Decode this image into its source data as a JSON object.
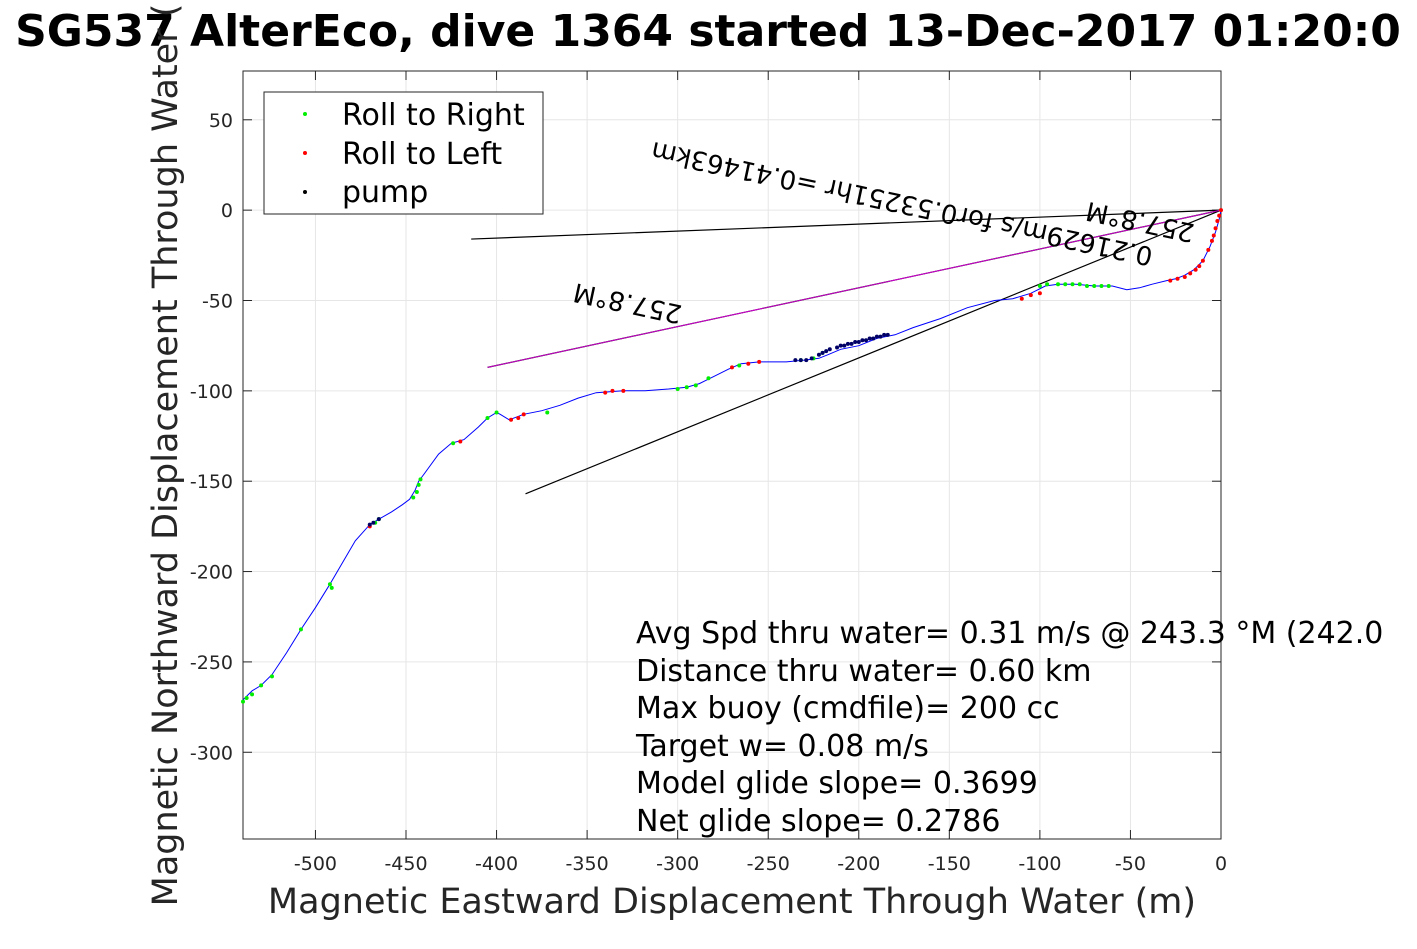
{
  "chart_data": {
    "type": "line",
    "title": "SG537 AlterEco, dive 1364 started 13-Dec-2017 01:20:0",
    "xlabel": "Magnetic Eastward Displacement Through Water (m)",
    "ylabel": "Magnetic Northward Displacement Through Water (",
    "xlim": [
      -540,
      0
    ],
    "ylim": [
      -348,
      77
    ],
    "x_ticks": [
      -500,
      -450,
      -400,
      -350,
      -300,
      -250,
      -200,
      -150,
      -100,
      -50,
      0
    ],
    "y_ticks": [
      50,
      0,
      -50,
      -100,
      -150,
      -200,
      -250,
      -300
    ],
    "grid": true,
    "legend": {
      "placement": "top-left",
      "entries": [
        {
          "label": "Roll to Right",
          "color": "#00ee00"
        },
        {
          "label": "Roll to Left",
          "color": "#ff0000"
        },
        {
          "label": "pump",
          "color": "#000000"
        }
      ]
    },
    "track": {
      "color": "#0000ff",
      "points": [
        [
          0,
          0
        ],
        [
          -1,
          -5
        ],
        [
          -3,
          -12
        ],
        [
          -6,
          -20
        ],
        [
          -10,
          -28
        ],
        [
          -15,
          -33
        ],
        [
          -20,
          -36
        ],
        [
          -25,
          -38
        ],
        [
          -30,
          -39
        ],
        [
          -38,
          -41
        ],
        [
          -45,
          -43
        ],
        [
          -52,
          -44
        ],
        [
          -60,
          -42
        ],
        [
          -70,
          -42
        ],
        [
          -80,
          -41
        ],
        [
          -90,
          -41
        ],
        [
          -97,
          -42
        ],
        [
          -105,
          -46
        ],
        [
          -115,
          -49
        ],
        [
          -125,
          -50
        ],
        [
          -140,
          -54
        ],
        [
          -155,
          -60
        ],
        [
          -170,
          -65
        ],
        [
          -180,
          -69
        ],
        [
          -190,
          -71
        ],
        [
          -200,
          -75
        ],
        [
          -210,
          -77
        ],
        [
          -217,
          -80
        ],
        [
          -222,
          -82
        ],
        [
          -230,
          -83
        ],
        [
          -240,
          -84
        ],
        [
          -255,
          -84
        ],
        [
          -265,
          -85
        ],
        [
          -272,
          -88
        ],
        [
          -280,
          -92
        ],
        [
          -288,
          -96
        ],
        [
          -295,
          -98
        ],
        [
          -305,
          -99
        ],
        [
          -318,
          -100
        ],
        [
          -330,
          -100
        ],
        [
          -345,
          -101
        ],
        [
          -355,
          -104
        ],
        [
          -365,
          -108
        ],
        [
          -375,
          -111
        ],
        [
          -385,
          -113
        ],
        [
          -393,
          -116
        ],
        [
          -398,
          -113
        ],
        [
          -400,
          -112
        ],
        [
          -405,
          -115
        ],
        [
          -410,
          -120
        ],
        [
          -418,
          -127
        ],
        [
          -425,
          -129
        ],
        [
          -432,
          -135
        ],
        [
          -440,
          -146
        ],
        [
          -443,
          -150
        ],
        [
          -445,
          -155
        ],
        [
          -448,
          -160
        ],
        [
          -452,
          -163
        ],
        [
          -458,
          -167
        ],
        [
          -465,
          -171
        ],
        [
          -470,
          -174
        ],
        [
          -478,
          -183
        ],
        [
          -485,
          -195
        ],
        [
          -492,
          -207
        ],
        [
          -500,
          -220
        ],
        [
          -508,
          -232
        ],
        [
          -516,
          -245
        ],
        [
          -524,
          -257
        ],
        [
          -530,
          -263
        ],
        [
          -535,
          -266
        ],
        [
          -540,
          -271
        ]
      ]
    },
    "roll_right_points": [
      [
        -540,
        -272
      ],
      [
        -538,
        -270
      ],
      [
        -535,
        -268
      ],
      [
        -530,
        -263
      ],
      [
        -524,
        -258
      ],
      [
        -508,
        -232
      ],
      [
        -492,
        -207
      ],
      [
        -491,
        -209
      ],
      [
        -465,
        -171
      ],
      [
        -467,
        -173
      ],
      [
        -443,
        -152
      ],
      [
        -444,
        -156
      ],
      [
        -442,
        -149
      ],
      [
        -446,
        -159
      ],
      [
        -400,
        -112
      ],
      [
        -405,
        -115
      ],
      [
        -372,
        -112
      ],
      [
        -424,
        -129
      ],
      [
        -290,
        -97
      ],
      [
        -295,
        -98
      ],
      [
        -300,
        -99
      ],
      [
        -283,
        -93
      ],
      [
        -266,
        -86
      ],
      [
        -232,
        -83
      ],
      [
        -225,
        -82
      ],
      [
        -220,
        -79
      ],
      [
        -100,
        -42
      ],
      [
        -96,
        -41
      ],
      [
        -90,
        -41
      ],
      [
        -86,
        -41
      ],
      [
        -82,
        -41
      ],
      [
        -78,
        -41
      ],
      [
        -74,
        -42
      ],
      [
        -70,
        -42
      ],
      [
        -66,
        -42
      ],
      [
        -62,
        -42
      ]
    ],
    "roll_left_points": [
      [
        -470,
        -175
      ],
      [
        -420,
        -128
      ],
      [
        -392,
        -116
      ],
      [
        -388,
        -115
      ],
      [
        -385,
        -113
      ],
      [
        -340,
        -101
      ],
      [
        -336,
        -100
      ],
      [
        -330,
        -100
      ],
      [
        -270,
        -87
      ],
      [
        -261,
        -85
      ],
      [
        -255,
        -84
      ],
      [
        -110,
        -49
      ],
      [
        -105,
        -47
      ],
      [
        -100,
        -46
      ],
      [
        -28,
        -39
      ],
      [
        -24,
        -38
      ],
      [
        -20,
        -37
      ],
      [
        -17,
        -35
      ],
      [
        -14,
        -33
      ],
      [
        -12,
        -31
      ],
      [
        -10,
        -28
      ],
      [
        -7,
        -22
      ],
      [
        -5,
        -17
      ],
      [
        -3,
        -10
      ],
      [
        -2,
        -6
      ],
      [
        -1,
        -3
      ],
      [
        0,
        0
      ],
      [
        -4,
        -14
      ]
    ],
    "pump_points": [
      [
        -470,
        -174
      ],
      [
        -468,
        -173
      ],
      [
        -465,
        -171
      ],
      [
        -235,
        -83
      ],
      [
        -232,
        -83
      ],
      [
        -229,
        -83
      ],
      [
        -226,
        -82
      ],
      [
        -222,
        -80
      ],
      [
        -220,
        -79
      ],
      [
        -218,
        -78
      ],
      [
        -216,
        -77
      ],
      [
        -212,
        -76
      ],
      [
        -210,
        -75
      ],
      [
        -208,
        -75
      ],
      [
        -206,
        -74
      ],
      [
        -204,
        -74
      ],
      [
        -202,
        -73
      ],
      [
        -200,
        -73
      ],
      [
        -198,
        -72
      ],
      [
        -196,
        -72
      ],
      [
        -194,
        -71
      ],
      [
        -192,
        -71
      ],
      [
        -190,
        -70
      ],
      [
        -188,
        -70
      ],
      [
        -186,
        -69
      ],
      [
        -184,
        -69
      ]
    ],
    "lines": [
      {
        "color": "#000000",
        "from": [
          0,
          0
        ],
        "to": [
          -414,
          -16
        ]
      },
      {
        "color": "#000000",
        "from": [
          0,
          0
        ],
        "to": [
          -384,
          -157
        ]
      },
      {
        "color": "#000000",
        "from": [
          0,
          0
        ],
        "to": [
          -405,
          -87
        ]
      },
      {
        "color": "#cc00cc",
        "from": [
          0,
          0
        ],
        "to": [
          -405,
          -87
        ]
      }
    ],
    "annotations": [
      {
        "text": "257.8°M",
        "x": -14,
        "y": -8,
        "angle": 192
      },
      {
        "text": "0.21629m/s for0.53251hr =0.41463km",
        "x": -37,
        "y": -21,
        "angle": 192
      },
      {
        "text": "257.8°M",
        "x": -297,
        "y": -53,
        "angle": 192
      }
    ],
    "info_text": [
      "Avg Spd thru water=  0.31 m/s @ 243.3 °M (242.0",
      "Distance thru water=  0.60 km",
      "Max buoy (cmdfile)= 200 cc",
      "Target w= 0.08 m/s",
      "Model glide slope= 0.3699",
      "Net glide slope= 0.2786"
    ]
  }
}
